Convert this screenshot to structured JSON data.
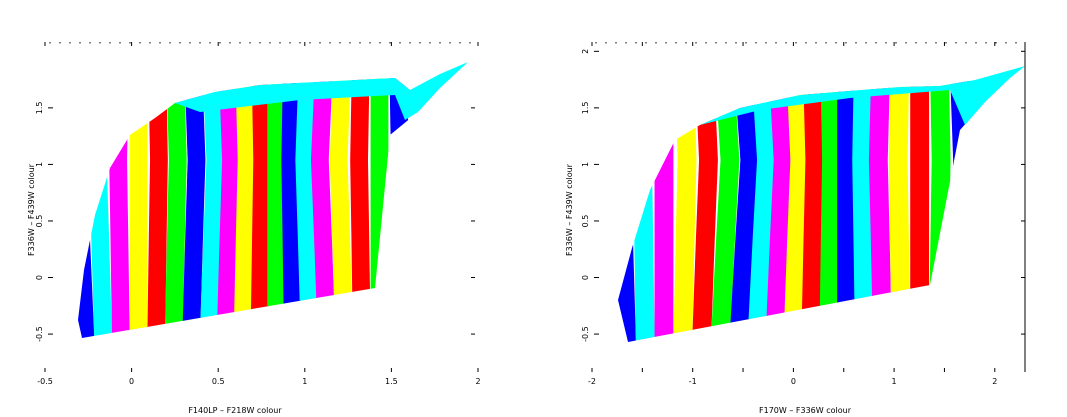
{
  "chart_data": [
    {
      "type": "area",
      "xlabel": "F140LP – F218W colour",
      "ylabel": "F336W – F439W colour",
      "xlim": [
        -0.5,
        2.0
      ],
      "ylim": [
        -0.8,
        2.1
      ],
      "xticks": [
        -0.5,
        0,
        0.5,
        1,
        1.5,
        2
      ],
      "xtick_labels": [
        "-0.5",
        "0",
        "0.5",
        "1",
        "1.5",
        "2"
      ],
      "yticks": [
        -0.5,
        0,
        0.5,
        1,
        1.5
      ],
      "ytick_labels": [
        "-0.5",
        "0",
        "0.5",
        "1",
        "1.5"
      ],
      "grid": false,
      "band_colors": [
        "#0000ff",
        "#00ffff",
        "#ff00ff",
        "#ffff00",
        "#ff0000",
        "#00ff00"
      ],
      "band_count": 19
    },
    {
      "type": "area",
      "xlabel": "F170W – F336W colour",
      "ylabel": "F336W – F439W colour",
      "xlim": [
        -2,
        2.3
      ],
      "ylim": [
        -0.8,
        2.1
      ],
      "xticks": [
        -2,
        -1.5,
        -1,
        -0.5,
        0,
        0.5,
        1,
        1.5,
        2
      ],
      "xtick_labels": [
        "-2",
        "",
        "-1",
        "",
        "0",
        "",
        "1",
        "",
        "2"
      ],
      "yticks": [
        -0.5,
        0,
        0.5,
        1,
        1.5,
        2
      ],
      "ytick_labels": [
        "-0.5",
        "0",
        "0.5",
        "1",
        "1.5",
        "2"
      ],
      "grid": false,
      "band_colors": [
        "#0000ff",
        "#00ffff",
        "#ff00ff",
        "#ffff00",
        "#ff0000",
        "#00ff00"
      ],
      "band_count": 19
    }
  ]
}
